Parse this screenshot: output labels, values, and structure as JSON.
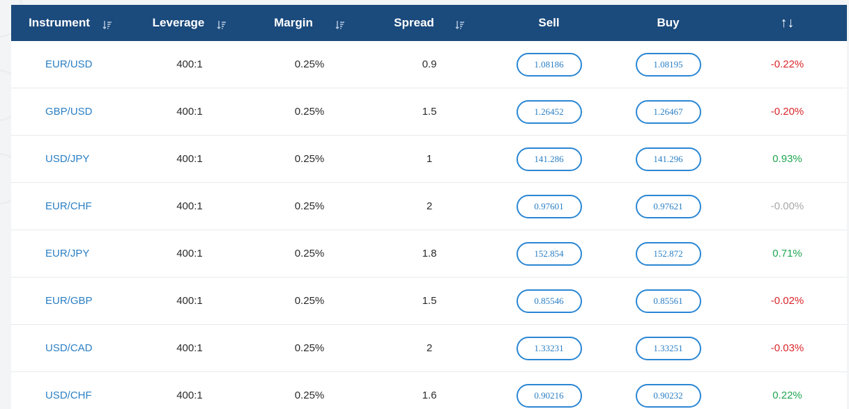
{
  "header": {
    "instrument": "Instrument",
    "leverage": "Leverage",
    "margin": "Margin",
    "spread": "Spread",
    "sell": "Sell",
    "buy": "Buy",
    "change": "↑↓"
  },
  "rows": [
    {
      "instrument": "EUR/USD",
      "leverage": "400:1",
      "margin": "0.25%",
      "spread": "0.9",
      "sell": "1.08186",
      "buy": "1.08195",
      "change": "-0.22%",
      "trend": "down"
    },
    {
      "instrument": "GBP/USD",
      "leverage": "400:1",
      "margin": "0.25%",
      "spread": "1.5",
      "sell": "1.26452",
      "buy": "1.26467",
      "change": "-0.20%",
      "trend": "down"
    },
    {
      "instrument": "USD/JPY",
      "leverage": "400:1",
      "margin": "0.25%",
      "spread": "1",
      "sell": "141.286",
      "buy": "141.296",
      "change": "0.93%",
      "trend": "up"
    },
    {
      "instrument": "EUR/CHF",
      "leverage": "400:1",
      "margin": "0.25%",
      "spread": "2",
      "sell": "0.97601",
      "buy": "0.97621",
      "change": "-0.00%",
      "trend": "flat"
    },
    {
      "instrument": "EUR/JPY",
      "leverage": "400:1",
      "margin": "0.25%",
      "spread": "1.8",
      "sell": "152.854",
      "buy": "152.872",
      "change": "0.71%",
      "trend": "up"
    },
    {
      "instrument": "EUR/GBP",
      "leverage": "400:1",
      "margin": "0.25%",
      "spread": "1.5",
      "sell": "0.85546",
      "buy": "0.85561",
      "change": "-0.02%",
      "trend": "down"
    },
    {
      "instrument": "USD/CAD",
      "leverage": "400:1",
      "margin": "0.25%",
      "spread": "2",
      "sell": "1.33231",
      "buy": "1.33251",
      "change": "-0.03%",
      "trend": "down"
    },
    {
      "instrument": "USD/CHF",
      "leverage": "400:1",
      "margin": "0.25%",
      "spread": "1.6",
      "sell": "0.90216",
      "buy": "0.90232",
      "change": "0.22%",
      "trend": "up"
    }
  ],
  "colors": {
    "header_bg": "#1b4a7c",
    "accent": "#2a7fc4",
    "negative": "#d9262b",
    "positive": "#1ea650",
    "neutral": "#a8a8a8"
  },
  "icons": {
    "sort": "sort-descending-icon"
  }
}
